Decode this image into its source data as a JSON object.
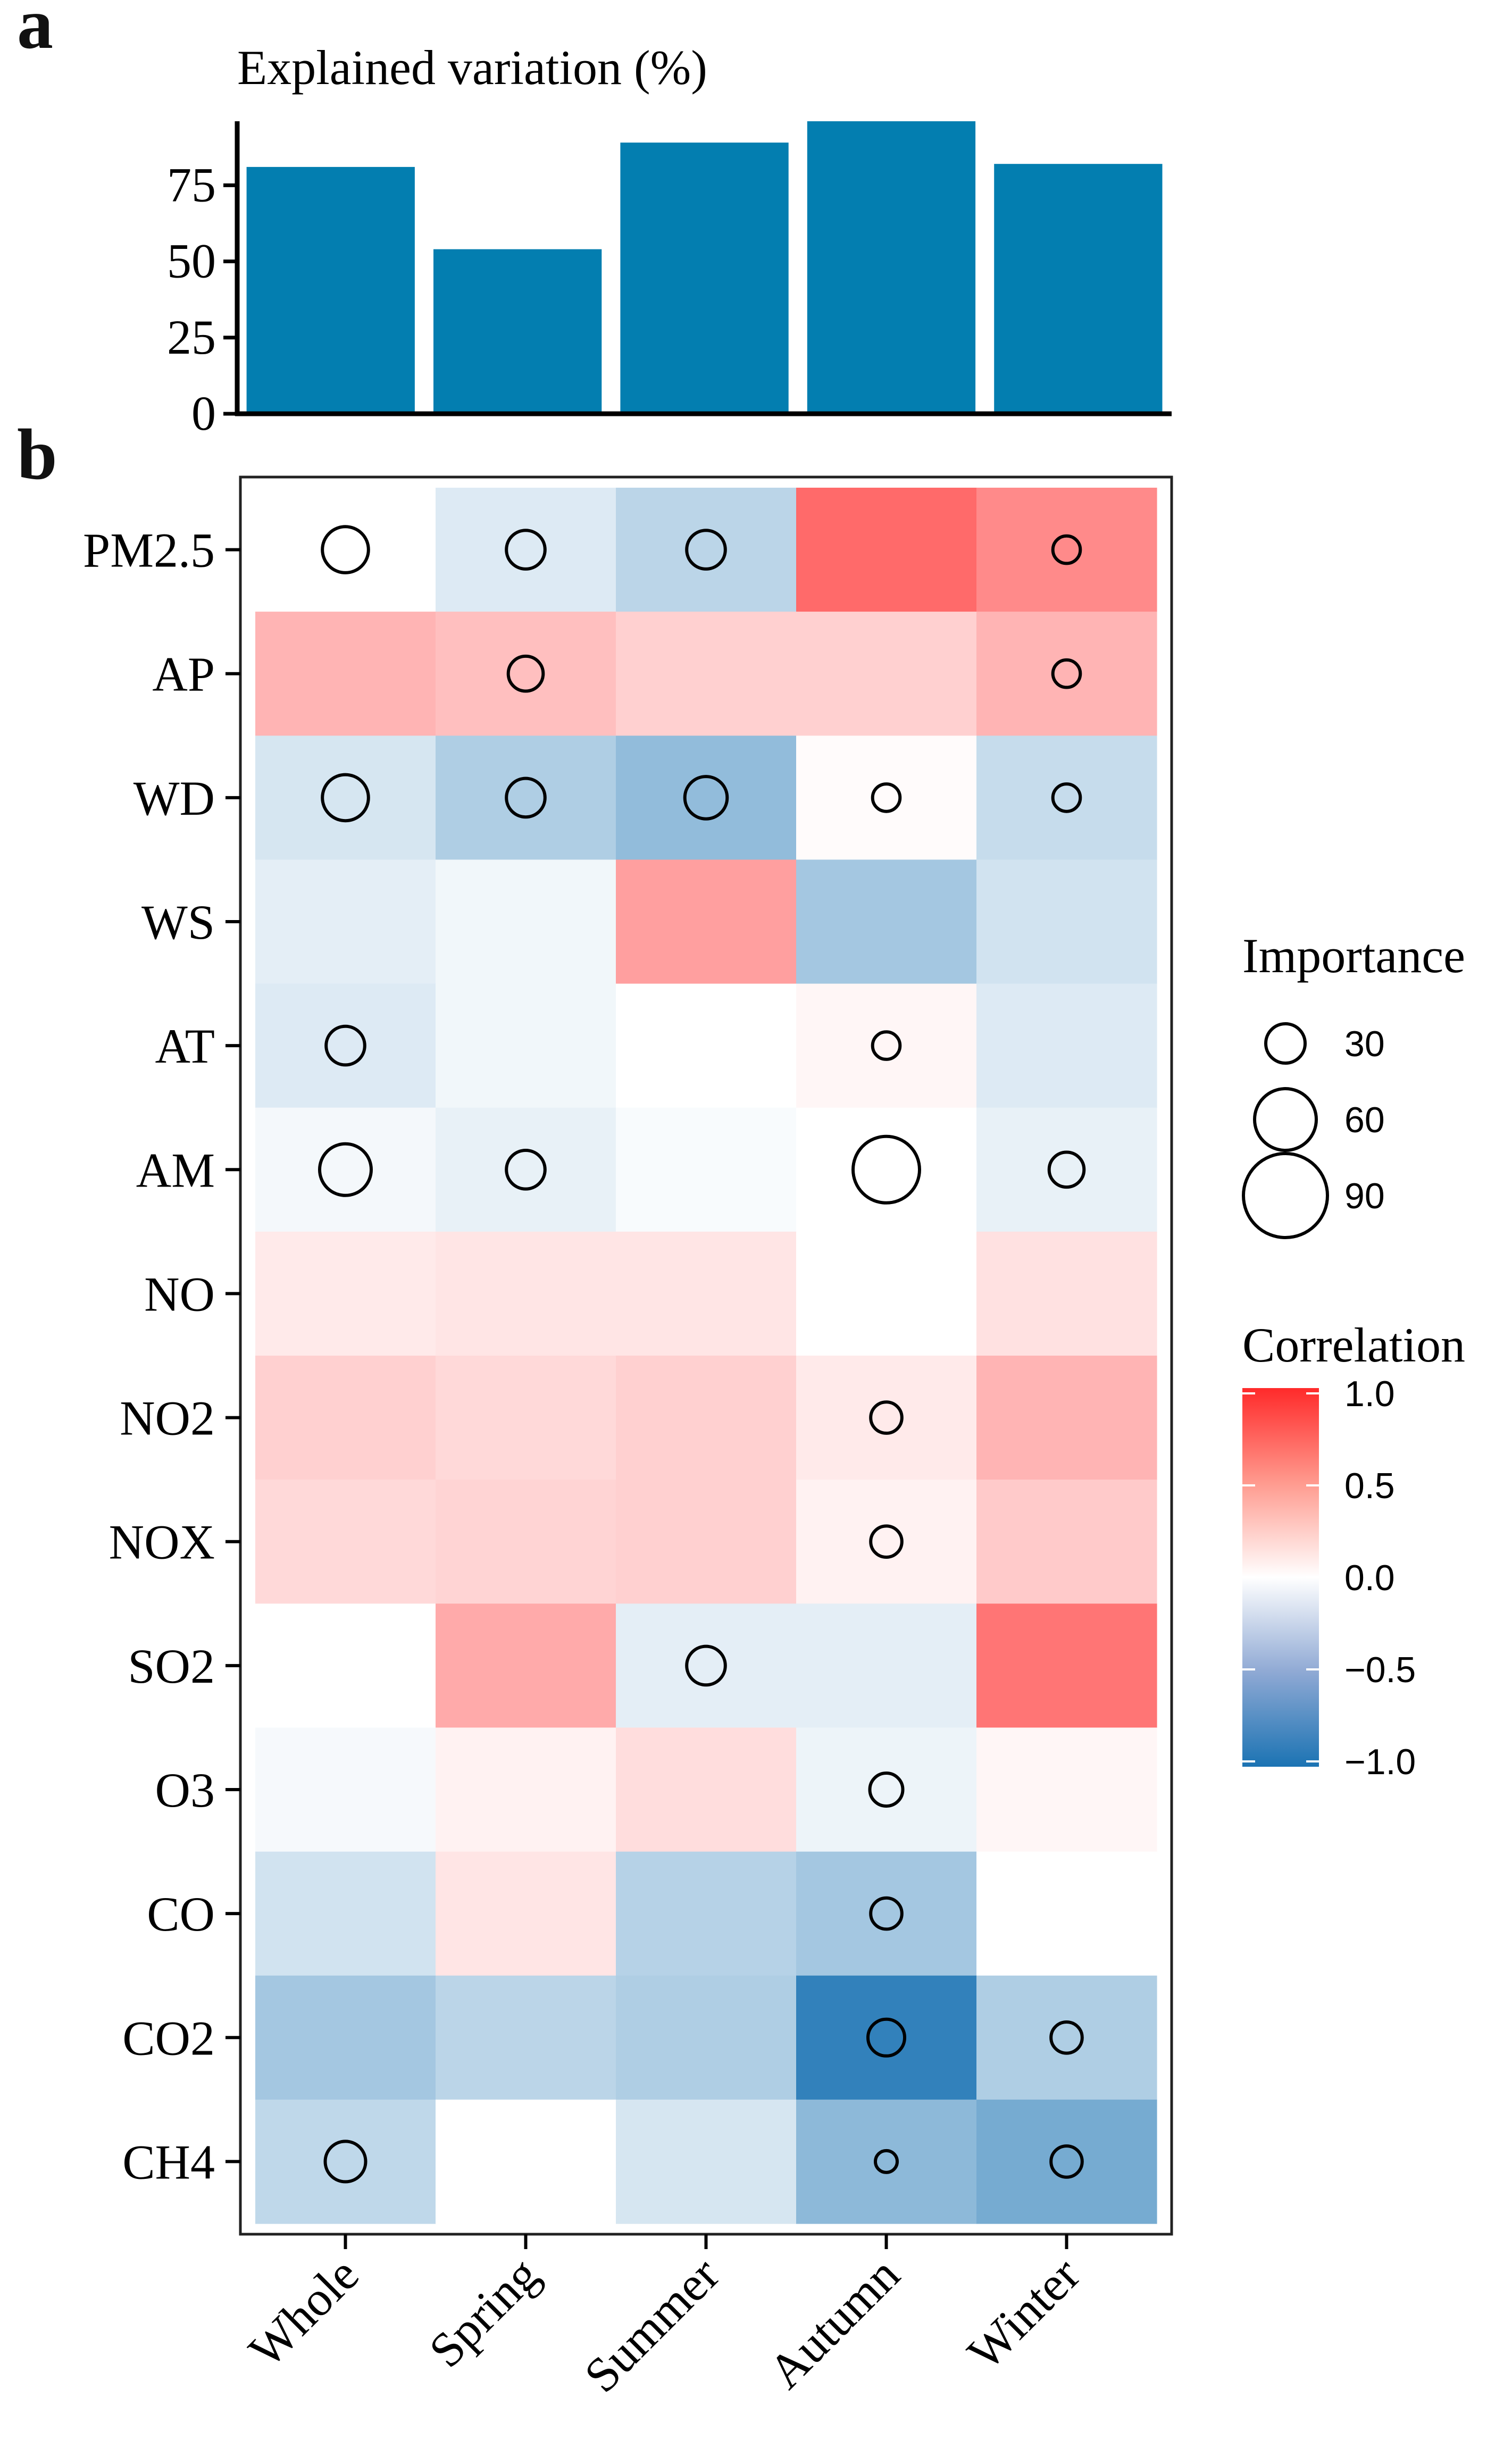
{
  "panel_labels": {
    "a": "a",
    "b": "b"
  },
  "colors": {
    "bar": "#037EB0",
    "pos": "#FF2A2A",
    "neg": "#1B73B3",
    "mid": "#FFFFFF"
  },
  "chart_data": [
    {
      "type": "bar",
      "title": "Explained variation (%)",
      "categories": [
        "Whole",
        "Spring",
        "Summer",
        "Autumn",
        "Winter"
      ],
      "values": [
        81,
        54,
        89,
        96,
        82
      ],
      "ylim": [
        0,
        96
      ],
      "yticks": [
        0,
        25,
        50,
        75
      ],
      "xlabel": "",
      "ylabel": ""
    },
    {
      "type": "heatmap",
      "rows": [
        "PM2.5",
        "AP",
        "WD",
        "WS",
        "AT",
        "AM",
        "NO",
        "NO2",
        "NOX",
        "SO2",
        "O3",
        "CO",
        "CO2",
        "CH4"
      ],
      "columns": [
        "Whole",
        "Spring",
        "Summer",
        "Autumn",
        "Winter"
      ],
      "correlation": [
        [
          0.0,
          -0.15,
          -0.3,
          0.7,
          0.55
        ],
        [
          0.35,
          0.3,
          0.22,
          0.22,
          0.35
        ],
        [
          -0.18,
          -0.35,
          -0.48,
          0.02,
          -0.25
        ],
        [
          -0.12,
          -0.06,
          0.45,
          -0.4,
          -0.2
        ],
        [
          -0.15,
          -0.06,
          0.0,
          0.04,
          -0.15
        ],
        [
          -0.05,
          -0.1,
          -0.03,
          0.0,
          -0.1
        ],
        [
          0.1,
          0.12,
          0.12,
          0.0,
          0.14
        ],
        [
          0.22,
          0.18,
          0.22,
          0.1,
          0.35
        ],
        [
          0.18,
          0.2,
          0.22,
          0.06,
          0.25
        ],
        [
          0.0,
          0.4,
          -0.12,
          -0.12,
          0.65
        ],
        [
          -0.04,
          0.06,
          0.16,
          -0.08,
          0.04
        ],
        [
          -0.2,
          0.12,
          -0.32,
          -0.4,
          0.0
        ],
        [
          -0.4,
          -0.3,
          -0.35,
          -0.9,
          -0.35
        ],
        [
          -0.28,
          0.0,
          -0.18,
          -0.5,
          -0.6
        ]
      ],
      "importance": [
        [
          75,
          55,
          55,
          null,
          25
        ],
        [
          null,
          45,
          null,
          null,
          25
        ],
        [
          75,
          55,
          65,
          25,
          25
        ],
        [
          null,
          null,
          null,
          null,
          null
        ],
        [
          55,
          null,
          null,
          25,
          null
        ],
        [
          90,
          55,
          null,
          130,
          45
        ],
        [
          null,
          null,
          null,
          null,
          null
        ],
        [
          null,
          null,
          null,
          35,
          null
        ],
        [
          null,
          null,
          null,
          35,
          null
        ],
        [
          null,
          null,
          55,
          null,
          null
        ],
        [
          null,
          null,
          null,
          40,
          null
        ],
        [
          null,
          null,
          null,
          35,
          null
        ],
        [
          null,
          null,
          null,
          50,
          35
        ],
        [
          60,
          null,
          null,
          10,
          35
        ]
      ],
      "legend_importance": {
        "title": "Importance",
        "values": [
          30,
          60,
          90
        ]
      },
      "legend_correlation": {
        "title": "Correlation",
        "ticks": [
          "1.0",
          "0.5",
          "0.0",
          "−0.5",
          "−1.0"
        ],
        "range": [
          -1.0,
          1.0
        ]
      }
    }
  ]
}
